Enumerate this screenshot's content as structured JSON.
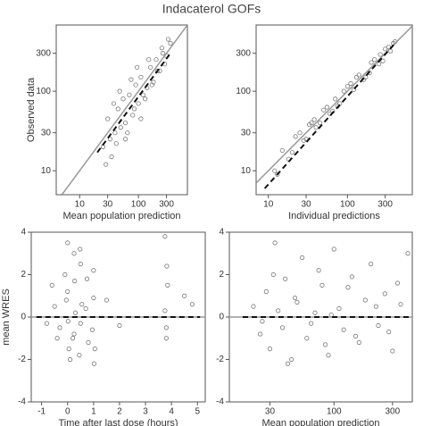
{
  "title": "Indacaterol GOFs",
  "chart_data": [
    {
      "type": "scatter",
      "xlabel": "Mean population prediction",
      "ylabel": "Observed data",
      "xlog": true,
      "ylog": true,
      "xlim": [
        4,
        680
      ],
      "ylim": [
        5,
        680
      ],
      "xticks": [
        10,
        30,
        100,
        300
      ],
      "yticks": [
        10,
        30,
        100,
        300
      ],
      "marker_color": "#7a7a7a",
      "identity_line": true,
      "x": [
        25,
        30,
        35,
        40,
        45,
        50,
        55,
        60,
        70,
        80,
        90,
        100,
        110,
        120,
        140,
        160,
        180,
        200,
        230,
        260,
        300,
        350,
        28,
        33,
        38,
        42,
        48,
        65,
        75,
        85,
        95,
        130,
        150,
        170,
        210,
        250,
        280,
        320,
        60,
        110
      ],
      "y": [
        20,
        45,
        15,
        30,
        60,
        35,
        80,
        40,
        90,
        50,
        120,
        70,
        150,
        90,
        110,
        200,
        130,
        250,
        180,
        300,
        280,
        400,
        12,
        25,
        70,
        22,
        100,
        30,
        140,
        60,
        200,
        80,
        250,
        120,
        180,
        350,
        220,
        450,
        25,
        45
      ],
      "trend_line": {
        "x": [
          20,
          350
        ],
        "y": [
          17,
          300
        ]
      }
    },
    {
      "type": "scatter",
      "xlabel": "Individual predictions",
      "xlog": true,
      "ylog": true,
      "xlim": [
        7,
        660
      ],
      "ylim": [
        5,
        680
      ],
      "xticks": [
        10,
        30,
        100,
        300
      ],
      "yticks": [
        10,
        30,
        100,
        300
      ],
      "marker_color": "#7a7a7a",
      "identity_line": true,
      "x": [
        12,
        15,
        20,
        25,
        30,
        35,
        40,
        50,
        60,
        70,
        80,
        100,
        120,
        140,
        170,
        200,
        250,
        300,
        350,
        400,
        18,
        22,
        28,
        33,
        45,
        55,
        65,
        90,
        110,
        160,
        220,
        280,
        330,
        13,
        38,
        75,
        130,
        190,
        260,
        380
      ],
      "y": [
        10,
        18,
        17,
        30,
        25,
        40,
        35,
        58,
        52,
        80,
        70,
        115,
        105,
        160,
        150,
        230,
        220,
        340,
        320,
        420,
        14,
        27,
        24,
        38,
        40,
        63,
        56,
        100,
        125,
        140,
        250,
        240,
        360,
        9,
        44,
        65,
        150,
        170,
        290,
        400
      ],
      "trend_line": {
        "x": [
          9,
          400
        ],
        "y": [
          6,
          400
        ]
      }
    },
    {
      "type": "scatter",
      "xlabel": "Time after last dose (hours)",
      "ylabel": "mean WRES",
      "xlog": false,
      "ylog": false,
      "xlim": [
        -1.4,
        5.3
      ],
      "ylim": [
        -4,
        4
      ],
      "xticks": [
        -1,
        0,
        1,
        2,
        3,
        4,
        5
      ],
      "yticks": [
        -4,
        -2,
        0,
        2,
        4
      ],
      "marker_color": "#7a7a7a",
      "hline": 0,
      "x": [
        -0.5,
        -0.4,
        -0.6,
        -0.3,
        -0.1,
        0,
        0.05,
        -0.05,
        0.1,
        0,
        0.25,
        0.2,
        0.3,
        0.25,
        0.5,
        0.45,
        0.55,
        0.5,
        0.75,
        0.8,
        0.7,
        1,
        0.95,
        1.05,
        1,
        3.75,
        3.8,
        3.85,
        3.8,
        3.75,
        4.5,
        4.8,
        -0.8,
        1.5,
        2,
        0.02,
        0.48,
        3.82,
        0.27,
        1.02
      ],
      "y": [
        0.5,
        -1,
        1.5,
        -0.5,
        2,
        3.5,
        -1.5,
        0.8,
        -2,
        1.2,
        3,
        -1,
        0.2,
        -0.8,
        2.5,
        -1.8,
        0.6,
        -0.3,
        1.8,
        -1.2,
        0.4,
        2.2,
        -0.6,
        -1.5,
        0.9,
        3.8,
        -1,
        1.5,
        -0.5,
        0.3,
        1,
        0.6,
        -0.3,
        0.8,
        -0.4,
        -0.2,
        3.2,
        2.4,
        1.7,
        -2.2
      ],
      "trend_line": {
        "x": [
          -1.2,
          5.1
        ],
        "y": [
          0,
          0
        ]
      }
    },
    {
      "type": "scatter",
      "xlabel": "Mean population prediction",
      "xlog": true,
      "ylog": false,
      "xlim": [
        14,
        435
      ],
      "ylim": [
        -4,
        4
      ],
      "xticks": [
        30,
        100,
        300
      ],
      "yticks": [
        -4,
        -2,
        0,
        2,
        4
      ],
      "marker_color": "#7a7a7a",
      "hline": 0,
      "x": [
        22,
        25,
        28,
        30,
        32,
        35,
        38,
        40,
        45,
        50,
        55,
        60,
        70,
        80,
        90,
        100,
        110,
        120,
        140,
        160,
        180,
        200,
        230,
        260,
        300,
        350,
        400,
        33,
        42,
        48,
        65,
        75,
        85,
        95,
        130,
        150,
        220,
        280,
        330,
        26
      ],
      "y": [
        0.5,
        -0.8,
        1.2,
        -1.5,
        2,
        0.3,
        -0.5,
        1.8,
        -2,
        0.7,
        2.8,
        -1,
        0.2,
        1.5,
        -1.8,
        3.2,
        0.4,
        -0.6,
        1.9,
        -1.2,
        0.8,
        2.5,
        -0.4,
        1.1,
        -1.6,
        0.6,
        3,
        3.5,
        -2.2,
        0.9,
        -0.3,
        2.2,
        -1.3,
        0.1,
        1.4,
        -0.9,
        0.5,
        -0.7,
        1.6,
        -0.2
      ],
      "trend_line": {
        "x": [
          18,
          420
        ],
        "y": [
          0,
          0
        ]
      }
    }
  ]
}
